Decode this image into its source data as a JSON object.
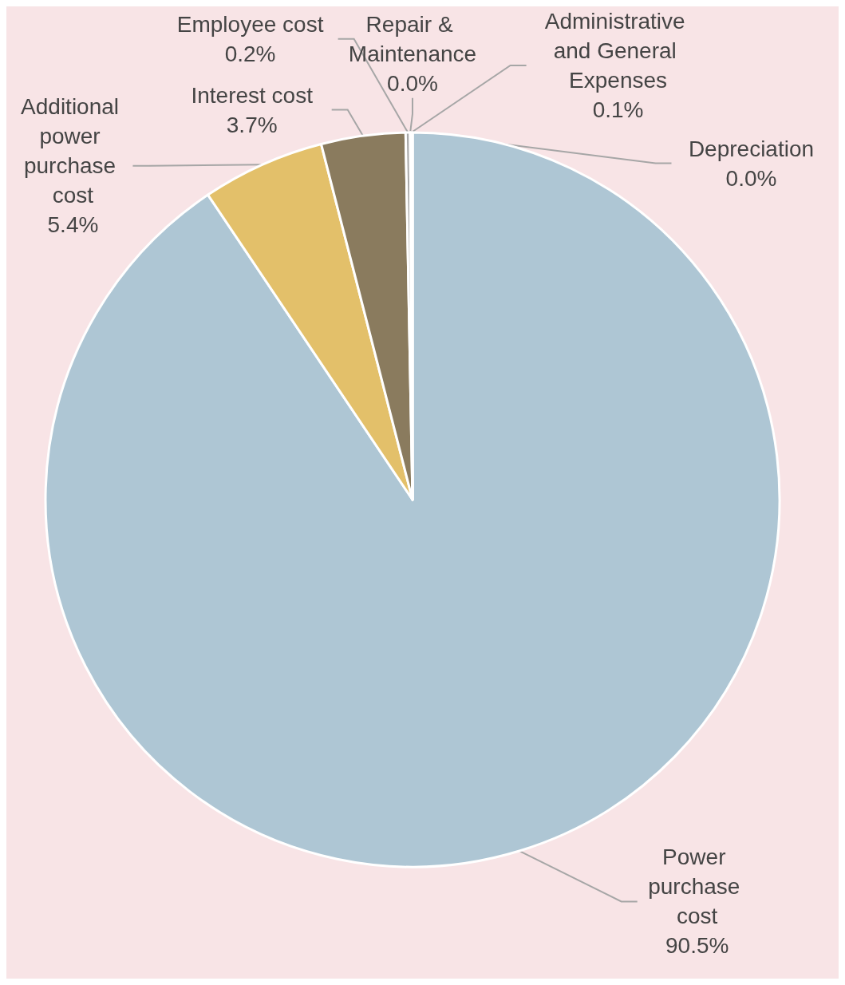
{
  "chart_data": {
    "type": "pie",
    "categories": [
      "Power purchase cost",
      "Additional power purchase cost",
      "Interest cost",
      "Employee cost",
      "Repair & Maintenance",
      "Administrative and General Expenses",
      "Depreciation"
    ],
    "values": [
      90.5,
      5.4,
      3.7,
      0.2,
      0.0,
      0.1,
      0.0
    ],
    "value_labels": [
      "90.5%",
      "5.4%",
      "3.7%",
      "0.2%",
      "0.0%",
      "0.1%",
      "0.0%"
    ],
    "colors": [
      "#aec6d4",
      "#e3c06a",
      "#8a7b5e",
      "#a9a9a9",
      "#c9b28a",
      "#6f8fa3",
      "#d9d9d9"
    ],
    "legend": false
  }
}
